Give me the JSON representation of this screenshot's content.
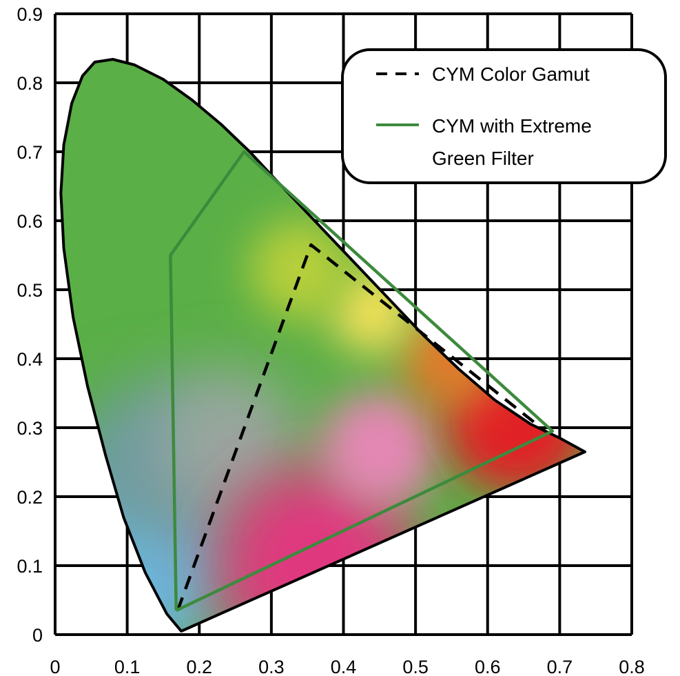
{
  "chart_data": {
    "type": "line",
    "xlim": [
      0,
      0.8
    ],
    "ylim": [
      0,
      0.9
    ],
    "x_ticks": [
      "0",
      "0.1",
      "0.2",
      "0.3",
      "0.4",
      "0.5",
      "0.6",
      "0.7",
      "0.8"
    ],
    "y_ticks": [
      "0",
      "0.1",
      "0.2",
      "0.3",
      "0.4",
      "0.5",
      "0.6",
      "0.7",
      "0.8",
      "0.9"
    ],
    "grid": true,
    "legend_position": "top-right",
    "spectral_locus": {
      "x": [
        0.175,
        0.155,
        0.125,
        0.095,
        0.07,
        0.045,
        0.025,
        0.012,
        0.008,
        0.012,
        0.023,
        0.038,
        0.055,
        0.08,
        0.11,
        0.15,
        0.19,
        0.23,
        0.27,
        0.31,
        0.36,
        0.41,
        0.46,
        0.51,
        0.56,
        0.61,
        0.66,
        0.7,
        0.735
      ],
      "y": [
        0.005,
        0.03,
        0.09,
        0.17,
        0.26,
        0.36,
        0.46,
        0.56,
        0.64,
        0.71,
        0.77,
        0.81,
        0.83,
        0.834,
        0.826,
        0.805,
        0.775,
        0.74,
        0.7,
        0.655,
        0.6,
        0.545,
        0.49,
        0.435,
        0.385,
        0.34,
        0.305,
        0.285,
        0.265
      ]
    },
    "series": [
      {
        "name": "CYM Color Gamut",
        "style": "dashed",
        "color": "#000000",
        "x": [
          0.17,
          0.355,
          0.68
        ],
        "y": [
          0.035,
          0.565,
          0.295
        ]
      },
      {
        "name": "CYM with Extreme Green Filter",
        "style": "solid",
        "color": "#3d8a3d",
        "x": [
          0.168,
          0.16,
          0.262,
          0.69,
          0.168
        ],
        "y": [
          0.035,
          0.55,
          0.7,
          0.295,
          0.035
        ]
      }
    ],
    "colors": {
      "red": "#e02227",
      "green": "#5aaf46",
      "blue": "#6bb7dc",
      "magenta": "#e0397f",
      "yellow": "#f1e05a",
      "legend_line_green": "#3d8a3d"
    }
  },
  "legend": {
    "items": [
      {
        "line1": "CYM Color Gamut",
        "line2": ""
      },
      {
        "line1": "CYM with Extreme",
        "line2": "Green Filter"
      }
    ]
  }
}
